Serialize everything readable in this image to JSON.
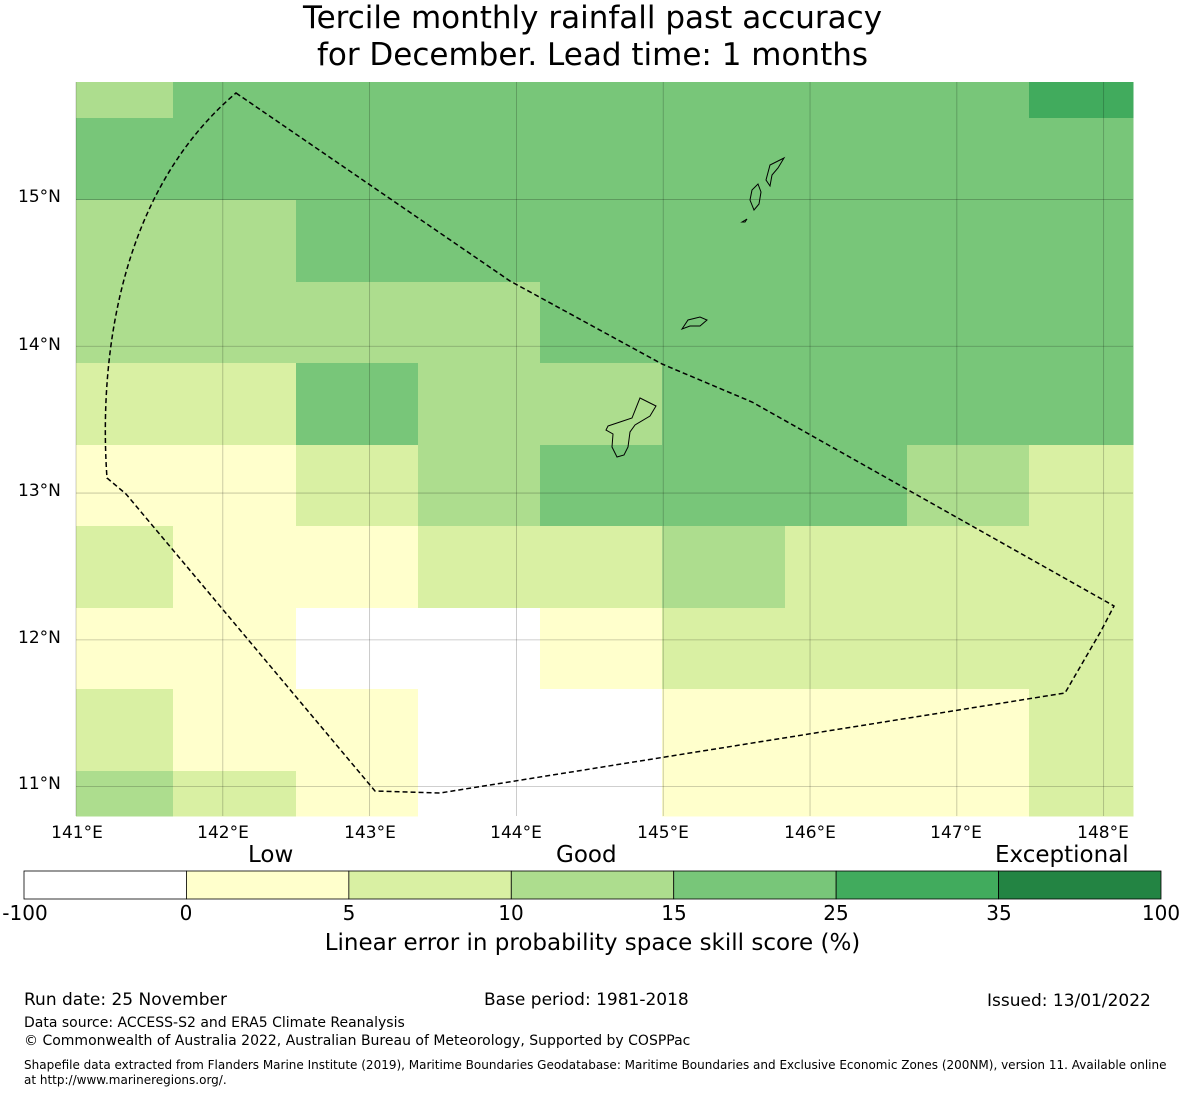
{
  "title_line1": "Tercile monthly rainfall past accuracy",
  "title_line2": "for December. Lead time: 1 months",
  "axes": {
    "lat_labels": [
      "15°N",
      "14°N",
      "13°N",
      "12°N",
      "11°N"
    ],
    "lon_labels": [
      "141°E",
      "142°E",
      "143°E",
      "144°E",
      "145°E",
      "146°E",
      "147°E",
      "148°E"
    ],
    "lat_range": [
      10.8,
      15.8
    ],
    "lon_range": [
      141.0,
      148.2
    ]
  },
  "colorbar": {
    "categories": [
      "Low",
      "Good",
      "Exceptional"
    ],
    "ticks": [
      "-100",
      "0",
      "5",
      "10",
      "15",
      "25",
      "35",
      "100"
    ],
    "colors": [
      "#ffffff",
      "#ffffcc",
      "#d9f0a3",
      "#addd8e",
      "#78c679",
      "#41ab5d",
      "#238443"
    ],
    "label": "Linear error in probability space skill score (%)"
  },
  "map_colors": [
    "#ffffff",
    "#ffffcc",
    "#d9f0a3",
    "#addd8e",
    "#78c679",
    "#41ab5d"
  ],
  "grid_rows_top_to_bottom": [
    [
      3,
      4,
      4,
      4,
      4,
      4,
      4,
      4,
      5
    ],
    [
      4,
      4,
      4,
      4,
      4,
      4,
      4,
      4,
      4
    ],
    [
      3,
      3,
      4,
      4,
      4,
      4,
      4,
      4,
      4
    ],
    [
      3,
      3,
      3,
      3,
      4,
      4,
      4,
      4,
      4
    ],
    [
      2,
      2,
      4,
      3,
      3,
      4,
      4,
      4,
      4
    ],
    [
      1,
      1,
      2,
      3,
      4,
      4,
      4,
      3,
      2
    ],
    [
      2,
      1,
      1,
      2,
      2,
      3,
      2,
      2,
      2
    ],
    [
      1,
      1,
      0,
      0,
      1,
      2,
      2,
      2,
      2
    ],
    [
      2,
      1,
      1,
      0,
      0,
      1,
      1,
      1,
      2
    ],
    [
      3,
      2,
      1,
      0,
      0,
      1,
      1,
      1,
      2
    ]
  ],
  "footer": {
    "run_date": "Run date: 25 November",
    "base_period": "Base period: 1981-2018",
    "issued": "Issued: 13/01/2022",
    "data_source": "Data source: ACCESS-S2 and ERA5 Climate Reanalysis",
    "copyright": "© Commonwealth of Australia 2022, Australian Bureau of Meteorology, Supported by COSPPac",
    "shapefile_line1": "Shapefile data extracted from Flanders Marine Institute (2019), Maritime Boundaries Geodatabase: Maritime Boundaries and Exclusive Economic Zones (200NM), version 11. Available online",
    "shapefile_line2": "at http://www.marineregions.org/."
  }
}
